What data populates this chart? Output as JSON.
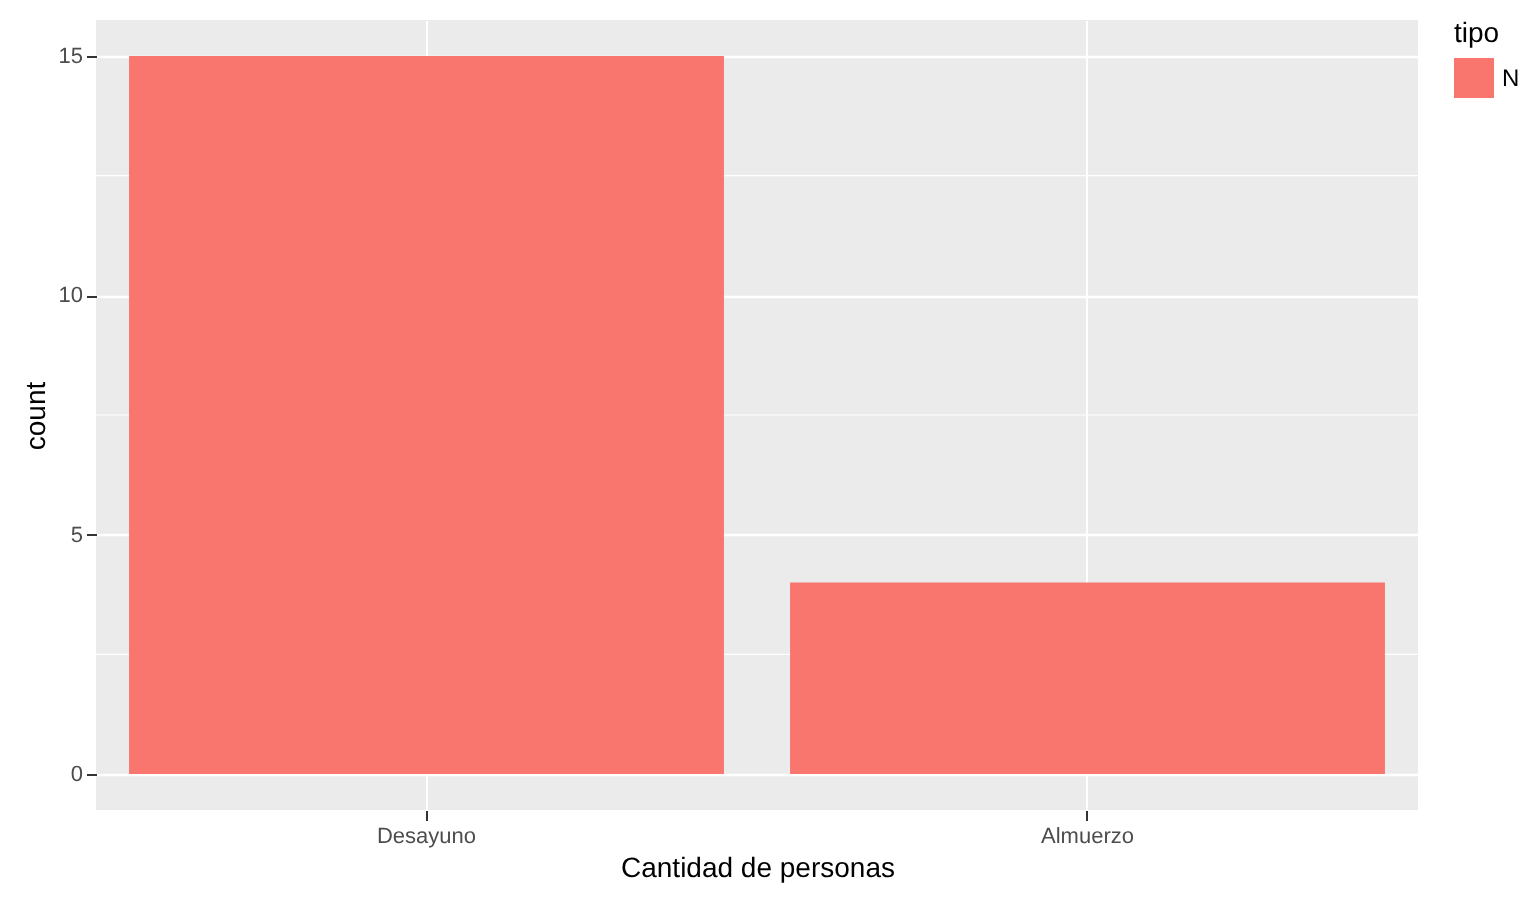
{
  "chart_data": {
    "type": "bar",
    "xlabel": "Cantidad de personas",
    "ylabel": "count",
    "legend_title": "tipo",
    "categories": [
      "Desayuno",
      "Almuerzo"
    ],
    "series": [
      {
        "name": "N",
        "color": "#f8766d",
        "values": [
          15,
          4
        ]
      }
    ],
    "ylim": [
      -0.75,
      15.75
    ],
    "yticks": [
      0,
      5,
      10,
      15
    ],
    "grid": true,
    "legend": "right"
  }
}
